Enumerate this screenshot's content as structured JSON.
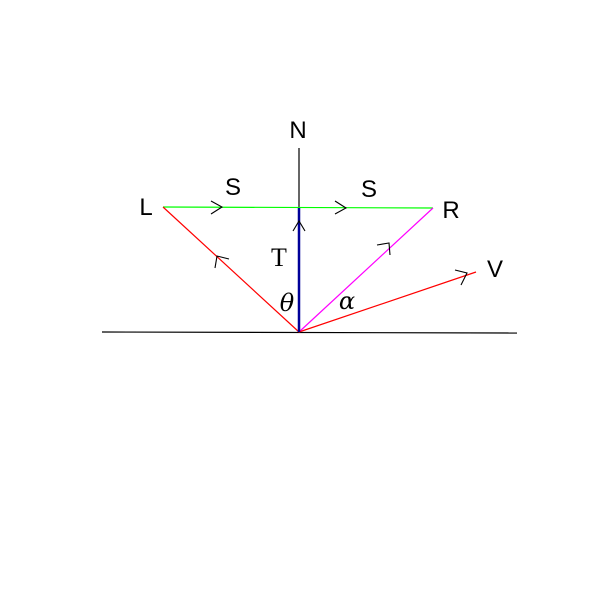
{
  "labels": {
    "normal": "N",
    "left": "L",
    "right": "R",
    "view": "V",
    "s_left": "S",
    "s_right": "S",
    "t": "T",
    "theta": "θ",
    "alpha": "α"
  },
  "colors": {
    "surface": "#000000",
    "normal": "#000000",
    "l_vector": "#ff0000",
    "r_vector": "#ff00ff",
    "v_vector": "#ff0000",
    "s_vector": "#00ff00",
    "t_vector": "#000099",
    "arrow_head": "#000000"
  }
}
